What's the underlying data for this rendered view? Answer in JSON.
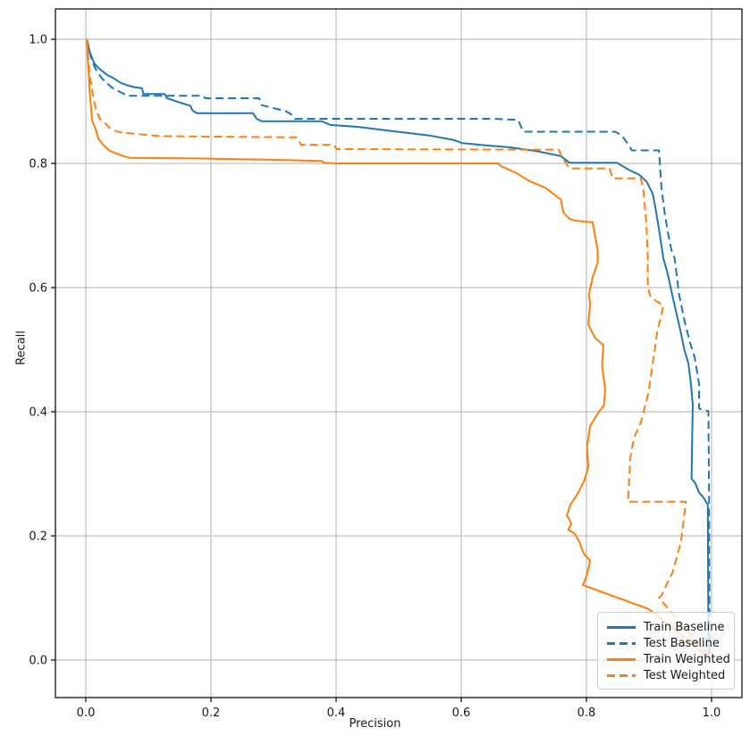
{
  "chart_data": {
    "type": "line",
    "title": "",
    "xlabel": "Precision",
    "ylabel": "Recall",
    "xlim": [
      -0.0486,
      1.0486
    ],
    "ylim": [
      -0.0604,
      1.0489
    ],
    "xticks": [
      0.0,
      0.2,
      0.4,
      0.6,
      0.8,
      1.0
    ],
    "yticks": [
      0.0,
      0.2,
      0.4,
      0.6,
      0.8,
      1.0
    ],
    "xtick_labels": [
      "0.0",
      "0.2",
      "0.4",
      "0.6",
      "0.8",
      "1.0"
    ],
    "ytick_labels": [
      "0.0",
      "0.2",
      "0.4",
      "0.6",
      "0.8",
      "1.0"
    ],
    "grid": true,
    "legend_position": "lower right",
    "colors": {
      "baseline": "#1f77b4",
      "weighted": "#ff7f0e",
      "grid": "#b0b0b0",
      "spine": "#000000",
      "text": "#1a1a1a"
    },
    "series": [
      {
        "name": "Train Baseline",
        "color": "#1f77b4",
        "style": "solid",
        "points": [
          [
            0.002,
            1.0
          ],
          [
            0.004,
            0.988
          ],
          [
            0.007,
            0.978
          ],
          [
            0.01,
            0.97
          ],
          [
            0.013,
            0.962
          ],
          [
            0.019,
            0.955
          ],
          [
            0.027,
            0.948
          ],
          [
            0.035,
            0.942
          ],
          [
            0.045,
            0.937
          ],
          [
            0.055,
            0.93
          ],
          [
            0.066,
            0.926
          ],
          [
            0.077,
            0.923
          ],
          [
            0.09,
            0.921
          ],
          [
            0.092,
            0.912
          ],
          [
            0.126,
            0.912
          ],
          [
            0.13,
            0.905
          ],
          [
            0.151,
            0.898
          ],
          [
            0.167,
            0.893
          ],
          [
            0.17,
            0.886
          ],
          [
            0.177,
            0.881
          ],
          [
            0.267,
            0.881
          ],
          [
            0.273,
            0.872
          ],
          [
            0.281,
            0.868
          ],
          [
            0.377,
            0.868
          ],
          [
            0.391,
            0.862
          ],
          [
            0.434,
            0.859
          ],
          [
            0.491,
            0.852
          ],
          [
            0.549,
            0.845
          ],
          [
            0.587,
            0.838
          ],
          [
            0.601,
            0.833
          ],
          [
            0.639,
            0.829
          ],
          [
            0.677,
            0.826
          ],
          [
            0.72,
            0.82
          ],
          [
            0.759,
            0.812
          ],
          [
            0.773,
            0.801
          ],
          [
            0.849,
            0.801
          ],
          [
            0.867,
            0.79
          ],
          [
            0.884,
            0.782
          ],
          [
            0.896,
            0.771
          ],
          [
            0.906,
            0.751
          ],
          [
            0.91,
            0.73
          ],
          [
            0.916,
            0.694
          ],
          [
            0.923,
            0.647
          ],
          [
            0.93,
            0.622
          ],
          [
            0.937,
            0.589
          ],
          [
            0.944,
            0.558
          ],
          [
            0.951,
            0.527
          ],
          [
            0.956,
            0.502
          ],
          [
            0.963,
            0.478
          ],
          [
            0.967,
            0.445
          ],
          [
            0.97,
            0.411
          ],
          [
            0.969,
            0.358
          ],
          [
            0.968,
            0.292
          ],
          [
            0.974,
            0.285
          ],
          [
            0.98,
            0.27
          ],
          [
            0.987,
            0.262
          ],
          [
            0.994,
            0.25
          ],
          [
            0.995,
            0.004
          ]
        ]
      },
      {
        "name": "Test Baseline",
        "color": "#1f77b4",
        "style": "dashed",
        "points": [
          [
            0.002,
            1.0
          ],
          [
            0.005,
            0.985
          ],
          [
            0.008,
            0.972
          ],
          [
            0.012,
            0.96
          ],
          [
            0.018,
            0.948
          ],
          [
            0.025,
            0.938
          ],
          [
            0.033,
            0.93
          ],
          [
            0.042,
            0.922
          ],
          [
            0.053,
            0.916
          ],
          [
            0.063,
            0.911
          ],
          [
            0.066,
            0.909
          ],
          [
            0.187,
            0.909
          ],
          [
            0.191,
            0.905
          ],
          [
            0.277,
            0.905
          ],
          [
            0.281,
            0.894
          ],
          [
            0.32,
            0.884
          ],
          [
            0.33,
            0.878
          ],
          [
            0.334,
            0.872
          ],
          [
            0.653,
            0.872
          ],
          [
            0.691,
            0.87
          ],
          [
            0.699,
            0.851
          ],
          [
            0.846,
            0.851
          ],
          [
            0.857,
            0.845
          ],
          [
            0.863,
            0.836
          ],
          [
            0.873,
            0.821
          ],
          [
            0.916,
            0.821
          ],
          [
            0.92,
            0.76
          ],
          [
            0.925,
            0.72
          ],
          [
            0.93,
            0.69
          ],
          [
            0.936,
            0.66
          ],
          [
            0.941,
            0.647
          ],
          [
            0.948,
            0.589
          ],
          [
            0.958,
            0.541
          ],
          [
            0.966,
            0.51
          ],
          [
            0.973,
            0.488
          ],
          [
            0.98,
            0.445
          ],
          [
            0.98,
            0.405
          ],
          [
            0.995,
            0.401
          ],
          [
            0.996,
            0.26
          ],
          [
            0.997,
            0.004
          ]
        ]
      },
      {
        "name": "Train Weighted",
        "color": "#ff7f0e",
        "style": "solid",
        "points": [
          [
            0.002,
            1.0
          ],
          [
            0.003,
            0.97
          ],
          [
            0.005,
            0.94
          ],
          [
            0.006,
            0.917
          ],
          [
            0.008,
            0.894
          ],
          [
            0.01,
            0.869
          ],
          [
            0.016,
            0.855
          ],
          [
            0.02,
            0.84
          ],
          [
            0.027,
            0.831
          ],
          [
            0.037,
            0.821
          ],
          [
            0.049,
            0.816
          ],
          [
            0.06,
            0.812
          ],
          [
            0.07,
            0.809
          ],
          [
            0.177,
            0.808
          ],
          [
            0.29,
            0.806
          ],
          [
            0.377,
            0.804
          ],
          [
            0.381,
            0.801
          ],
          [
            0.401,
            0.8
          ],
          [
            0.659,
            0.8
          ],
          [
            0.663,
            0.796
          ],
          [
            0.687,
            0.785
          ],
          [
            0.71,
            0.771
          ],
          [
            0.734,
            0.761
          ],
          [
            0.759,
            0.742
          ],
          [
            0.763,
            0.721
          ],
          [
            0.773,
            0.711
          ],
          [
            0.781,
            0.708
          ],
          [
            0.81,
            0.705
          ],
          [
            0.818,
            0.66
          ],
          [
            0.818,
            0.64
          ],
          [
            0.81,
            0.617
          ],
          [
            0.804,
            0.589
          ],
          [
            0.806,
            0.574
          ],
          [
            0.803,
            0.541
          ],
          [
            0.813,
            0.52
          ],
          [
            0.827,
            0.507
          ],
          [
            0.825,
            0.474
          ],
          [
            0.83,
            0.435
          ],
          [
            0.828,
            0.41
          ],
          [
            0.82,
            0.4
          ],
          [
            0.806,
            0.377
          ],
          [
            0.801,
            0.344
          ],
          [
            0.803,
            0.311
          ],
          [
            0.797,
            0.29
          ],
          [
            0.786,
            0.268
          ],
          [
            0.774,
            0.25
          ],
          [
            0.769,
            0.233
          ],
          [
            0.776,
            0.22
          ],
          [
            0.771,
            0.21
          ],
          [
            0.781,
            0.204
          ],
          [
            0.789,
            0.19
          ],
          [
            0.796,
            0.171
          ],
          [
            0.806,
            0.16
          ],
          [
            0.801,
            0.138
          ],
          [
            0.796,
            0.124
          ],
          [
            0.794,
            0.121
          ],
          [
            0.9,
            0.082
          ],
          [
            0.997,
            0.003
          ]
        ]
      },
      {
        "name": "Test Weighted",
        "color": "#ff7f0e",
        "style": "dashed",
        "points": [
          [
            0.002,
            1.0
          ],
          [
            0.004,
            0.97
          ],
          [
            0.006,
            0.94
          ],
          [
            0.009,
            0.927
          ],
          [
            0.012,
            0.905
          ],
          [
            0.016,
            0.888
          ],
          [
            0.022,
            0.872
          ],
          [
            0.031,
            0.865
          ],
          [
            0.04,
            0.855
          ],
          [
            0.055,
            0.85
          ],
          [
            0.075,
            0.848
          ],
          [
            0.12,
            0.844
          ],
          [
            0.337,
            0.842
          ],
          [
            0.344,
            0.83
          ],
          [
            0.396,
            0.83
          ],
          [
            0.401,
            0.823
          ],
          [
            0.756,
            0.822
          ],
          [
            0.761,
            0.81
          ],
          [
            0.773,
            0.792
          ],
          [
            0.837,
            0.792
          ],
          [
            0.842,
            0.776
          ],
          [
            0.887,
            0.776
          ],
          [
            0.891,
            0.757
          ],
          [
            0.896,
            0.7
          ],
          [
            0.898,
            0.65
          ],
          [
            0.898,
            0.6
          ],
          [
            0.903,
            0.584
          ],
          [
            0.923,
            0.571
          ],
          [
            0.913,
            0.527
          ],
          [
            0.906,
            0.478
          ],
          [
            0.899,
            0.43
          ],
          [
            0.887,
            0.383
          ],
          [
            0.876,
            0.358
          ],
          [
            0.87,
            0.325
          ],
          [
            0.867,
            0.262
          ],
          [
            0.867,
            0.255
          ],
          [
            0.959,
            0.255
          ],
          [
            0.951,
            0.19
          ],
          [
            0.938,
            0.142
          ],
          [
            0.92,
            0.104
          ],
          [
            0.916,
            0.1
          ],
          [
            0.999,
            0.003
          ]
        ]
      }
    ]
  }
}
